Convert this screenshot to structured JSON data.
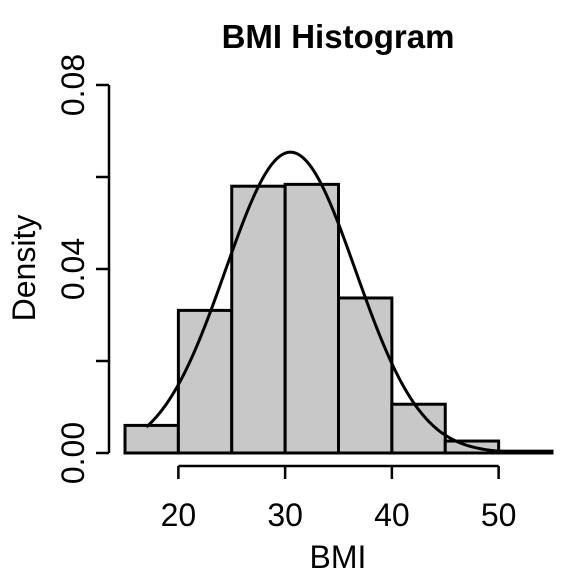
{
  "chart_data": {
    "type": "bar",
    "title": "BMI Histogram",
    "xlabel": "BMI",
    "ylabel": "Density",
    "xlim": [
      15,
      55
    ],
    "ylim": [
      0,
      0.08
    ],
    "x_ticks": [
      20,
      30,
      40,
      50
    ],
    "y_ticks": [
      0,
      0.02,
      0.04,
      0.06,
      0.08
    ],
    "y_tick_labels": [
      "0.00",
      "",
      "0.04",
      "",
      "0.08"
    ],
    "bins": [
      {
        "start": 15,
        "end": 20,
        "density": 0.006
      },
      {
        "start": 20,
        "end": 25,
        "density": 0.031
      },
      {
        "start": 25,
        "end": 30,
        "density": 0.058
      },
      {
        "start": 30,
        "end": 35,
        "density": 0.0584
      },
      {
        "start": 35,
        "end": 40,
        "density": 0.0337
      },
      {
        "start": 40,
        "end": 45,
        "density": 0.0106
      },
      {
        "start": 45,
        "end": 50,
        "density": 0.0026
      },
      {
        "start": 50,
        "end": 55,
        "density": 0.0004
      }
    ],
    "density_curve": {
      "type": "normal",
      "mean": 30.5,
      "sd": 6.1,
      "x_range": [
        17,
        55
      ]
    },
    "bar_fill": "#c8c8c8",
    "line_color": "#000000",
    "grid": false
  }
}
